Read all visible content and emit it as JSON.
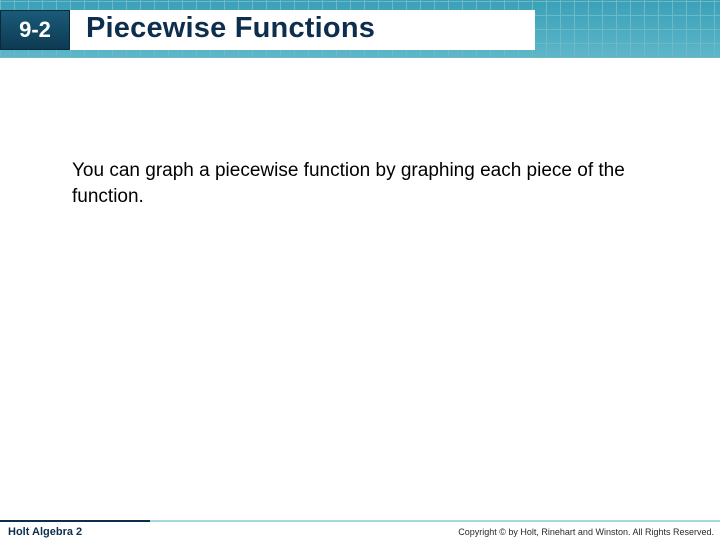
{
  "header": {
    "section_number": "9-2",
    "title": "Piecewise Functions",
    "grid_color": "#6fb9c5",
    "badge_bg_top": "#1a5b7a",
    "badge_bg_bottom": "#0d3a52",
    "title_color": "#0e2e4e"
  },
  "body": {
    "text": "You can graph a piecewise function by graphing each piece of the function.",
    "font_size_pt": 14,
    "text_color": "#000000"
  },
  "footer": {
    "book_title": "Holt Algebra 2",
    "copyright": "Copyright © by Holt, Rinehart and Winston. All Rights Reserved.",
    "line_color_dark": "#0e2e4e",
    "line_color_light": "#a7d8e0"
  }
}
